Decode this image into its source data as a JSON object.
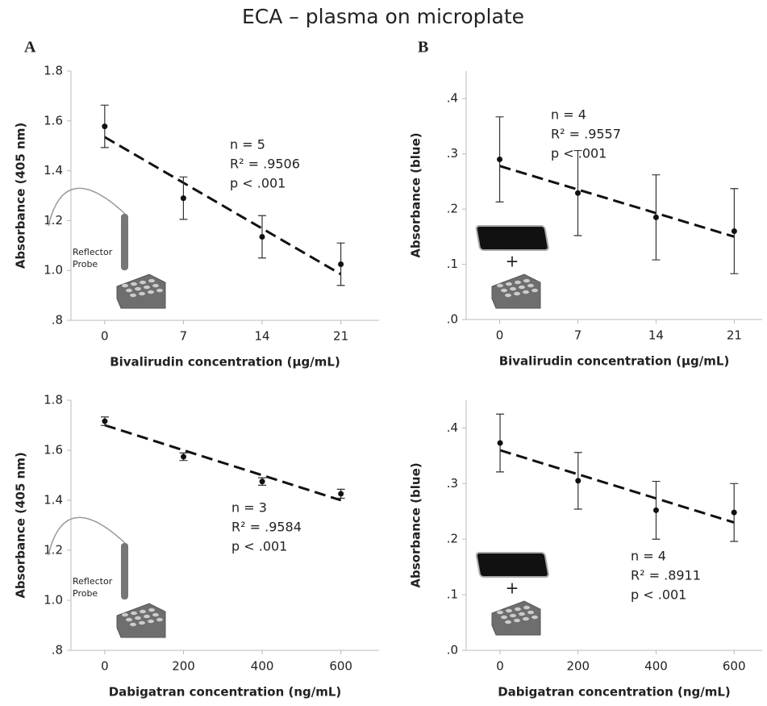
{
  "title": "ECA – plasma on microplate",
  "panel_labels": [
    "A",
    "B"
  ],
  "chart_data": [
    {
      "type": "scatter",
      "x": [
        0,
        7,
        14,
        21
      ],
      "values": [
        1.578,
        1.29,
        1.135,
        1.025
      ],
      "errors": [
        0.085,
        0.085,
        0.085,
        0.085
      ],
      "trendline": {
        "x": [
          0,
          21
        ],
        "y": [
          1.535,
          0.985
        ]
      },
      "xlabel": "Bivalirudin concentration (µg/mL)",
      "ylabel": "Absorbance (405 nm)",
      "xlim": [
        -3,
        24.4
      ],
      "xticks": [
        0,
        7,
        14,
        21
      ],
      "ylim": [
        0.8,
        1.8
      ],
      "yticks": [
        {
          "value": 0.8,
          "label": ".8"
        },
        {
          "value": 1.0,
          "label": "1.0"
        },
        1.2,
        1.4,
        1.6,
        1.8
      ],
      "annotations": [
        "n = 5",
        "R² = .9506",
        "p < .001"
      ],
      "icon_label": "Reflector Probe",
      "color": "#111111"
    },
    {
      "type": "scatter",
      "x": [
        0,
        7,
        14,
        21
      ],
      "values": [
        0.29,
        0.229,
        0.185,
        0.16
      ],
      "errors": [
        0.077,
        0.077,
        0.077,
        0.077
      ],
      "trendline": {
        "x": [
          0,
          21
        ],
        "y": [
          0.278,
          0.15
        ]
      },
      "xlabel": "Bivalirudin concentration (µg/mL)",
      "ylabel": "Absorbance (blue)",
      "xlim": [
        -3,
        23.5
      ],
      "xticks": [
        0,
        7,
        14,
        21
      ],
      "ylim": [
        0,
        0.45
      ],
      "yticks": [
        {
          "value": 0,
          "label": ".0"
        },
        {
          "value": 0.1,
          "label": ".1"
        },
        {
          "value": 0.2,
          "label": ".2"
        },
        {
          "value": 0.3,
          "label": ".3"
        },
        {
          "value": 0.4,
          "label": ".4"
        }
      ],
      "annotations": [
        "n = 4",
        "R² = .9557",
        "p < .001"
      ],
      "color": "#111111"
    },
    {
      "type": "scatter",
      "x": [
        0,
        200,
        400,
        600
      ],
      "values": [
        1.716,
        1.574,
        1.475,
        1.426
      ],
      "errors": [
        0.017,
        0.015,
        0.015,
        0.018
      ],
      "trendline": {
        "x": [
          0,
          600
        ],
        "y": [
          1.7,
          1.4
        ]
      },
      "xlabel": "Dabigatran concentration (ng/mL)",
      "ylabel": "Absorbance (405 nm)",
      "xlim": [
        -86,
        697
      ],
      "xticks": [
        0,
        200,
        400,
        600
      ],
      "ylim": [
        0.8,
        1.8
      ],
      "yticks": [
        {
          "value": 0.8,
          "label": ".8"
        },
        {
          "value": 1.0,
          "label": "1.0"
        },
        1.2,
        1.4,
        1.6,
        1.8
      ],
      "annotations": [
        "n = 3",
        "R² = .9584",
        "p < .001"
      ],
      "icon_label": "Reflector Probe",
      "color": "#111111"
    },
    {
      "type": "scatter",
      "x": [
        0,
        200,
        400,
        600
      ],
      "values": [
        0.373,
        0.305,
        0.252,
        0.248
      ],
      "errors": [
        0.052,
        0.051,
        0.052,
        0.052
      ],
      "trendline": {
        "x": [
          0,
          600
        ],
        "y": [
          0.36,
          0.23
        ]
      },
      "xlabel": "Dabigatran concentration (ng/mL)",
      "ylabel": "Absorbance (blue)",
      "xlim": [
        -87,
        672
      ],
      "xticks": [
        0,
        200,
        400,
        600
      ],
      "ylim": [
        0,
        0.45
      ],
      "yticks": [
        {
          "value": 0,
          "label": ".0"
        },
        {
          "value": 0.1,
          "label": ".1"
        },
        {
          "value": 0.2,
          "label": ".2"
        },
        {
          "value": 0.3,
          "label": ".3"
        },
        {
          "value": 0.4,
          "label": ".4"
        }
      ],
      "annotations": [
        "n = 4",
        "R² = .8911",
        "p < .001"
      ],
      "color": "#111111"
    }
  ]
}
